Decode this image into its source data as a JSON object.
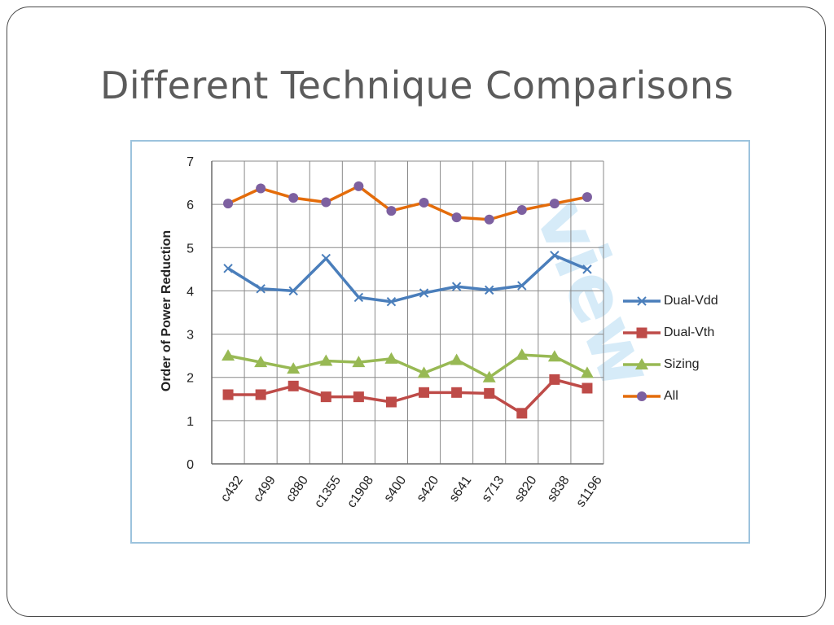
{
  "slide": {
    "title": "Different Technique Comparisons",
    "watermark": "view"
  },
  "chart_data": {
    "type": "line",
    "title": "",
    "xlabel": "",
    "ylabel": "Order of Power Reduction",
    "ylim": [
      0,
      7
    ],
    "yticks": [
      "0",
      "1",
      "2",
      "3",
      "4",
      "5",
      "6",
      "7"
    ],
    "grid": true,
    "legend_position": "right",
    "categories": [
      "c432",
      "c499",
      "c880",
      "c1355",
      "c1908",
      "s400",
      "s420",
      "s641",
      "s713",
      "s820",
      "s838",
      "s1196"
    ],
    "series": [
      {
        "name": "Dual-Vdd",
        "color": "#4a7ebb",
        "marker": "x",
        "values": [
          4.52,
          4.05,
          4.0,
          4.75,
          3.85,
          3.75,
          3.95,
          4.1,
          4.02,
          4.12,
          4.82,
          4.5
        ]
      },
      {
        "name": "Dual-Vth",
        "color": "#be4b48",
        "marker": "square",
        "values": [
          1.6,
          1.6,
          1.8,
          1.55,
          1.55,
          1.43,
          1.65,
          1.65,
          1.63,
          1.17,
          1.95,
          1.75
        ]
      },
      {
        "name": "Sizing",
        "color": "#98b954",
        "marker": "triangle",
        "values": [
          2.5,
          2.35,
          2.2,
          2.38,
          2.35,
          2.43,
          2.1,
          2.4,
          2.0,
          2.52,
          2.48,
          2.1
        ]
      },
      {
        "name": "All",
        "color": "#e46c0a",
        "marker": "circle",
        "marker_color": "#7d60a0",
        "values": [
          6.02,
          6.37,
          6.15,
          6.05,
          6.42,
          5.85,
          6.04,
          5.7,
          5.65,
          5.87,
          6.02,
          6.17
        ]
      }
    ]
  }
}
